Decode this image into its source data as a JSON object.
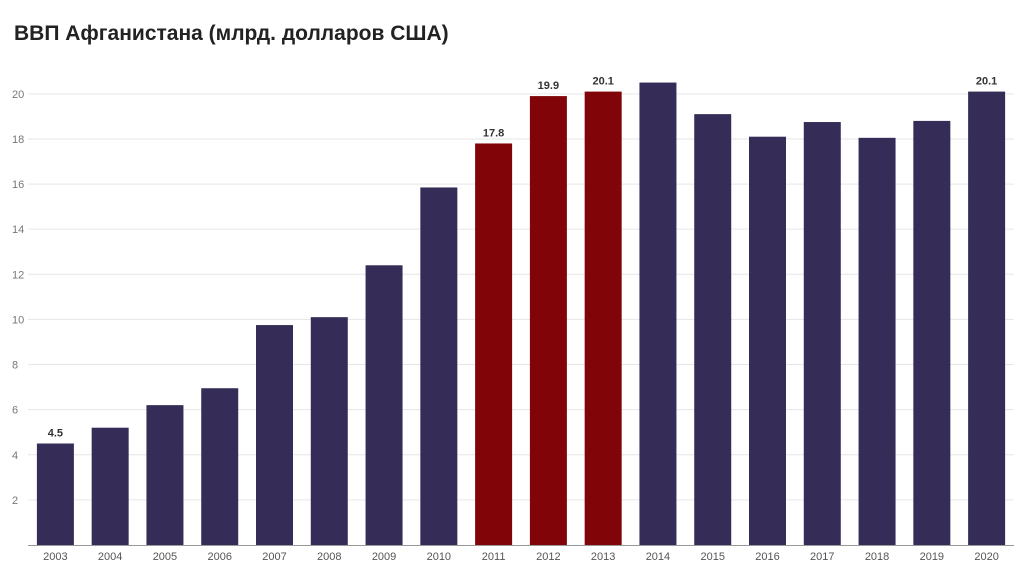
{
  "chart_data": {
    "type": "bar",
    "title": "ВВП Афганистана (млрд. долларов США)",
    "xlabel": "",
    "ylabel": "",
    "ylim": [
      0,
      21.5
    ],
    "yticks": [
      2,
      4,
      6,
      8,
      10,
      12,
      14,
      16,
      18,
      20
    ],
    "grid": true,
    "categories": [
      "2003",
      "2004",
      "2005",
      "2006",
      "2007",
      "2008",
      "2009",
      "2010",
      "2011",
      "2012",
      "2013",
      "2014",
      "2015",
      "2016",
      "2017",
      "2018",
      "2019",
      "2020"
    ],
    "values": [
      4.5,
      5.2,
      6.2,
      6.95,
      9.75,
      10.1,
      12.4,
      15.85,
      17.8,
      19.9,
      20.1,
      20.5,
      19.1,
      18.1,
      18.75,
      18.05,
      18.8,
      20.1
    ],
    "data_labels": [
      "4.5",
      "",
      "",
      "",
      "",
      "",
      "",
      "",
      "17.8",
      "19.9",
      "20.1",
      "",
      "",
      "",
      "",
      "",
      "",
      "20.1"
    ],
    "colors": {
      "default": "#352d57",
      "highlight": "#800408",
      "grid": "#e6e6e6",
      "axis": "#999999"
    },
    "highlighted": [
      "2011",
      "2012",
      "2013"
    ]
  }
}
